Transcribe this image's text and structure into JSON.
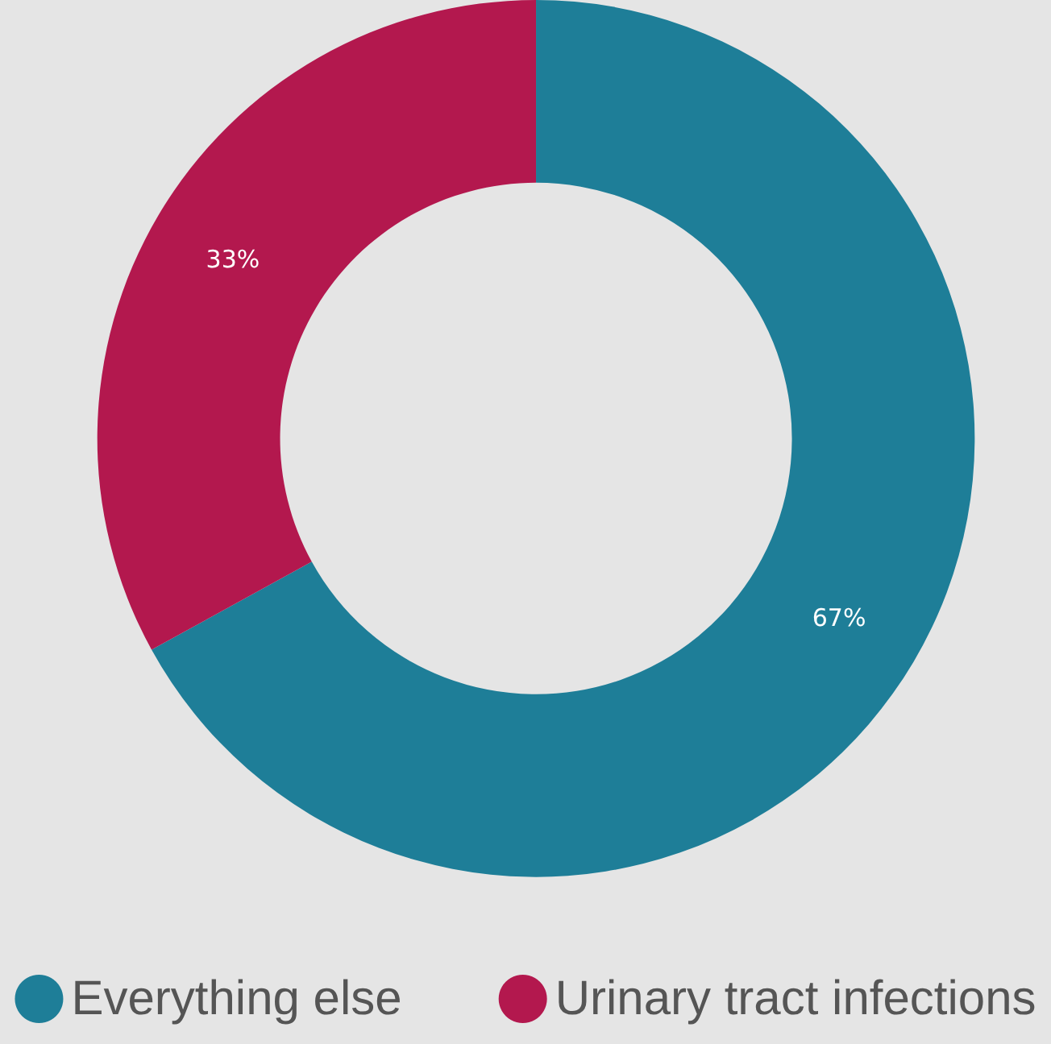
{
  "chart_data": {
    "type": "donut",
    "categories": [
      "Everything else",
      "Urinary tract infections"
    ],
    "values": [
      67,
      33
    ],
    "colors": [
      "#1e7e98",
      "#b3184e"
    ],
    "value_labels": [
      "67%",
      "33%"
    ],
    "legend": "bottom"
  }
}
